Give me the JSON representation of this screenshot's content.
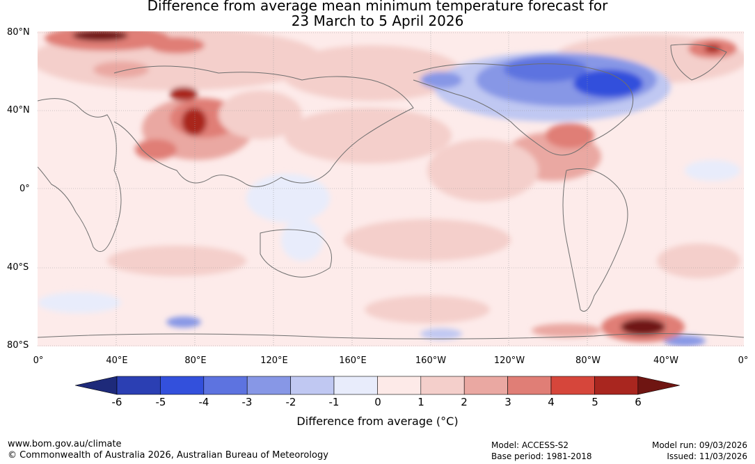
{
  "title_line1": "Difference from average mean minimum temperature forecast for",
  "title_line2": "23 March to 5 April 2026",
  "lat_labels": [
    "80°N",
    "40°N",
    "0°",
    "40°S",
    "80°S"
  ],
  "lon_labels": [
    "0°",
    "40°E",
    "80°E",
    "120°E",
    "160°E",
    "160°W",
    "120°W",
    "80°W",
    "40°W",
    "0°"
  ],
  "colorbar": {
    "ticks": [
      "-6",
      "-5",
      "-4",
      "-3",
      "-2",
      "-1",
      "0",
      "1",
      "2",
      "3",
      "4",
      "5",
      "6"
    ],
    "colors": [
      "#1e2a7a",
      "#2b3fb3",
      "#3350dc",
      "#5d73e0",
      "#8797e6",
      "#c0c8f2",
      "#e8ecfb",
      "#fdeae8",
      "#f4cfcb",
      "#eaa8a2",
      "#e07e76",
      "#d6463b",
      "#a9261f",
      "#6f1512"
    ],
    "label": "Difference from average (°C)"
  },
  "footer": {
    "website": "www.bom.gov.au/climate",
    "copyright": "© Commonwealth of Australia 2026, Australian Bureau of Meteorology",
    "model": "Model: ACCESS-S2",
    "base_period": "Base period: 1981-2018",
    "model_run": "Model run: 09/03/2026",
    "issued": "Issued: 11/03/2026"
  }
}
